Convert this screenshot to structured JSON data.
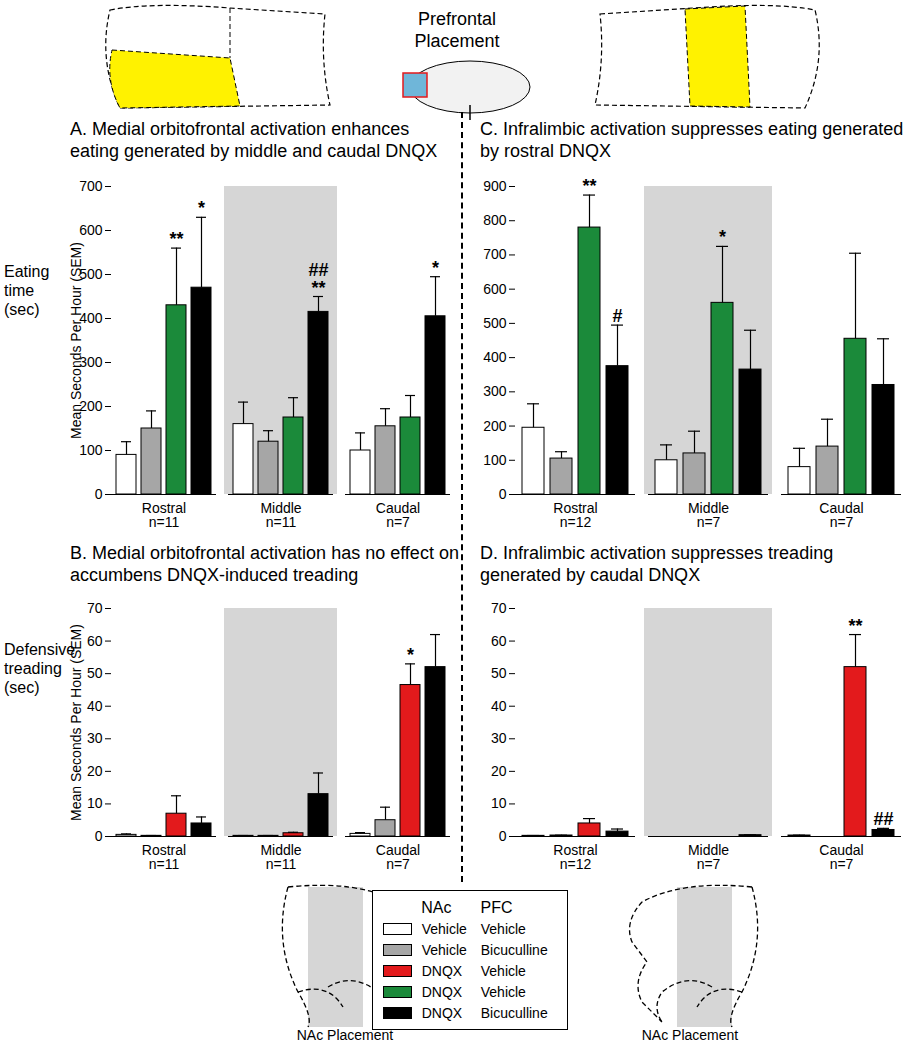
{
  "header": {
    "title": "Prefrontal\nPlacement"
  },
  "row_labels": [
    "Eating\ntime (sec)",
    "Defensive\ntreading\n(sec)"
  ],
  "footer": {
    "labels": [
      "NAc Placement",
      "NAc Placement"
    ]
  },
  "legend": {
    "headers": [
      "NAc",
      "PFC"
    ],
    "rows": [
      {
        "nac": "Vehicle",
        "pfc": "Vehicle",
        "color": "#ffffff"
      },
      {
        "nac": "Vehicle",
        "pfc": "Bicuculline",
        "color": "#a6a6a6"
      },
      {
        "nac": "DNQX",
        "pfc": "Vehicle",
        "color": "#e31a1c"
      },
      {
        "nac": "DNQX",
        "pfc": "Vehicle",
        "color": "#1b8a3a"
      },
      {
        "nac": "DNQX",
        "pfc": "Bicuculline",
        "color": "#000000"
      }
    ]
  },
  "chart_data": [
    {
      "type": "bar",
      "title": "A. Medial orbitofrontal activation enhances eating generated by middle and caudal DNQX",
      "ylabel": "Mean Seconds Per Hour (SEM)",
      "categories": [
        "Rostral\nn=11",
        "Middle\nn=11",
        "Caudal\nn=7"
      ],
      "ylim": [
        0,
        700
      ],
      "yticks": [
        0,
        100,
        200,
        300,
        400,
        500,
        600,
        700
      ],
      "series": [
        {
          "name": "Vehicle Vehicle",
          "color": "#ffffff",
          "values": [
            90,
            160,
            100
          ],
          "errors": [
            30,
            50,
            40
          ],
          "annotations": [
            null,
            null,
            null
          ]
        },
        {
          "name": "Vehicle Bicuculline",
          "color": "#a6a6a6",
          "values": [
            150,
            120,
            155
          ],
          "errors": [
            40,
            25,
            40
          ],
          "annotations": [
            null,
            null,
            null
          ]
        },
        {
          "name": "DNQX Vehicle",
          "color": "#1b8a3a",
          "values": [
            430,
            175,
            175
          ],
          "errors": [
            130,
            45,
            50
          ],
          "annotations": [
            "**",
            null,
            null
          ]
        },
        {
          "name": "DNQX Bicuculline",
          "color": "#000000",
          "values": [
            470,
            415,
            405
          ],
          "errors": [
            160,
            35,
            90
          ],
          "annotations": [
            "*",
            "##\n**",
            "*"
          ]
        }
      ]
    },
    {
      "type": "bar",
      "title": "B. Medial orbitofrontal activation has no effect on accumbens DNQX-induced treading",
      "ylabel": "Mean Seconds Per Hour (SEM)",
      "categories": [
        "Rostral\nn=11",
        "Middle\nn=11",
        "Caudal\nn=7"
      ],
      "ylim": [
        0,
        70
      ],
      "yticks": [
        0,
        10,
        20,
        30,
        40,
        50,
        60,
        70
      ],
      "series": [
        {
          "name": "Vehicle Vehicle",
          "color": "#ffffff",
          "values": [
            0.5,
            0.2,
            0.8
          ],
          "errors": [
            0.3,
            0.1,
            0.4
          ],
          "annotations": [
            null,
            null,
            null
          ]
        },
        {
          "name": "Vehicle Bicuculline",
          "color": "#a6a6a6",
          "values": [
            0.2,
            0.2,
            5
          ],
          "errors": [
            0.1,
            0.1,
            4
          ],
          "annotations": [
            null,
            null,
            null
          ]
        },
        {
          "name": "DNQX Vehicle",
          "color": "#e31a1c",
          "values": [
            7,
            1,
            46.5
          ],
          "errors": [
            5.5,
            0.3,
            6.5
          ],
          "annotations": [
            null,
            null,
            "*"
          ]
        },
        {
          "name": "DNQX Bicuculline",
          "color": "#000000",
          "values": [
            4,
            13,
            52
          ],
          "errors": [
            2,
            6.5,
            10
          ],
          "annotations": [
            null,
            null,
            null
          ]
        }
      ]
    },
    {
      "type": "bar",
      "title": "C. Infralimbic activation suppresses eating generated by rostral DNQX",
      "ylabel": null,
      "categories": [
        "Rostral\nn=12",
        "Middle\nn=7",
        "Caudal\nn=7"
      ],
      "ylim": [
        0,
        900
      ],
      "yticks": [
        0,
        100,
        200,
        300,
        400,
        500,
        600,
        700,
        800,
        900
      ],
      "series": [
        {
          "name": "Vehicle Vehicle",
          "color": "#ffffff",
          "values": [
            195,
            100,
            80
          ],
          "errors": [
            70,
            45,
            55
          ],
          "annotations": [
            null,
            null,
            null
          ]
        },
        {
          "name": "Vehicle Bicuculline",
          "color": "#a6a6a6",
          "values": [
            105,
            120,
            140
          ],
          "errors": [
            20,
            65,
            80
          ],
          "annotations": [
            null,
            null,
            null
          ]
        },
        {
          "name": "DNQX Vehicle",
          "color": "#1b8a3a",
          "values": [
            780,
            560,
            455
          ],
          "errors": [
            95,
            165,
            250
          ],
          "annotations": [
            "**",
            "*",
            null
          ]
        },
        {
          "name": "DNQX Bicuculline",
          "color": "#000000",
          "values": [
            375,
            365,
            320
          ],
          "errors": [
            120,
            115,
            135
          ],
          "annotations": [
            "#",
            null,
            null
          ]
        }
      ]
    },
    {
      "type": "bar",
      "title": "D. Infralimbic activation suppresses treading generated by caudal DNQX",
      "ylabel": null,
      "categories": [
        "Rostral\nn=12",
        "Middle\nn=7",
        "Caudal\nn=7"
      ],
      "ylim": [
        0,
        70
      ],
      "yticks": [
        0,
        10,
        20,
        30,
        40,
        50,
        60,
        70
      ],
      "series": [
        {
          "name": "Vehicle Vehicle",
          "color": "#ffffff",
          "values": [
            0.2,
            0,
            0.3
          ],
          "errors": [
            0.1,
            0,
            0.1
          ],
          "annotations": [
            null,
            null,
            null
          ]
        },
        {
          "name": "Vehicle Bicuculline",
          "color": "#a6a6a6",
          "values": [
            0.3,
            0,
            0
          ],
          "errors": [
            0.1,
            0,
            0
          ],
          "annotations": [
            null,
            null,
            null
          ]
        },
        {
          "name": "DNQX Vehicle",
          "color": "#e31a1c",
          "values": [
            4,
            0,
            52
          ],
          "errors": [
            1.5,
            0,
            10
          ],
          "annotations": [
            null,
            null,
            "**"
          ]
        },
        {
          "name": "DNQX Bicuculline",
          "color": "#000000",
          "values": [
            1.5,
            0.4,
            2
          ],
          "errors": [
            0.8,
            0.1,
            0.5
          ],
          "annotations": [
            null,
            null,
            "##"
          ]
        }
      ]
    }
  ]
}
